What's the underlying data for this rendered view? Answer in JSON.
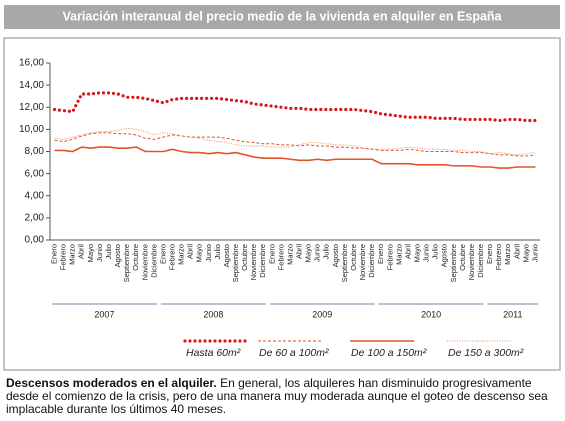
{
  "chart_data": {
    "type": "line",
    "title": "Variación interanual del precio medio de la vivienda en alquiler en España",
    "categories": [
      "Enero",
      "Febrero",
      "Marzo",
      "Abril",
      "Mayo",
      "Junio",
      "Julio",
      "Agosto",
      "Septiembre",
      "Octubre",
      "Noviembre",
      "Diciembre",
      "Enero",
      "Febrero",
      "Marzo",
      "Abril",
      "Mayo",
      "Junio",
      "Julio",
      "Agosto",
      "Septiembre",
      "Octubre",
      "Noviembre",
      "Diciembre",
      "Enero",
      "Febrero",
      "Marzo",
      "Abril",
      "Mayo",
      "Junio",
      "Julio",
      "Agosto",
      "Septiembre",
      "Octubre",
      "Noviembre",
      "Diciembre",
      "Enero",
      "Febrero",
      "Marzo",
      "Abril",
      "Mayo",
      "Junio",
      "Julio",
      "Agosto",
      "Septiembre",
      "Octubre",
      "Noviembre",
      "Diciembre",
      "Enero",
      "Febrero",
      "Marzo",
      "Abril",
      "Mayo",
      "Junio"
    ],
    "groups": [
      "2007",
      "2008",
      "2009",
      "2010",
      "2011"
    ],
    "ylim": [
      0,
      16
    ],
    "yticks": [
      {
        "value": 0,
        "label": "0,00"
      },
      {
        "value": 2,
        "label": "2,00"
      },
      {
        "value": 4,
        "label": "4,00"
      },
      {
        "value": 6,
        "label": "6,00"
      },
      {
        "value": 8,
        "label": "8,00"
      },
      {
        "value": 10,
        "label": "10,00"
      },
      {
        "value": 12,
        "label": "12,00"
      },
      {
        "value": 14,
        "label": "14,00"
      },
      {
        "value": 16,
        "label": "16,00"
      }
    ],
    "series": [
      {
        "name": "Hasta 60m²",
        "color": "#d7191c",
        "line_style": "dotted-thick",
        "values": [
          11.8,
          11.7,
          11.6,
          13.2,
          13.2,
          13.3,
          13.3,
          13.2,
          12.9,
          12.9,
          12.8,
          12.6,
          12.4,
          12.7,
          12.8,
          12.8,
          12.8,
          12.8,
          12.8,
          12.7,
          12.6,
          12.5,
          12.3,
          12.2,
          12.1,
          12.0,
          11.9,
          11.9,
          11.8,
          11.8,
          11.8,
          11.8,
          11.8,
          11.8,
          11.7,
          11.6,
          11.4,
          11.3,
          11.2,
          11.1,
          11.1,
          11.1,
          11.0,
          11.0,
          11.0,
          10.9,
          10.9,
          10.9,
          10.9,
          10.8,
          10.9,
          10.9,
          10.8,
          10.8
        ]
      },
      {
        "name": "De 60 a 100m²",
        "color": "#e0522a",
        "line_style": "dashed",
        "values": [
          9.0,
          8.9,
          9.1,
          9.4,
          9.6,
          9.7,
          9.7,
          9.6,
          9.6,
          9.5,
          9.2,
          9.1,
          9.3,
          9.5,
          9.4,
          9.3,
          9.3,
          9.3,
          9.3,
          9.2,
          9.0,
          8.9,
          8.8,
          8.7,
          8.7,
          8.6,
          8.6,
          8.5,
          8.6,
          8.5,
          8.5,
          8.4,
          8.4,
          8.3,
          8.3,
          8.2,
          8.1,
          8.1,
          8.1,
          8.2,
          8.1,
          8.0,
          8.0,
          8.0,
          8.0,
          7.9,
          7.9,
          7.9,
          7.8,
          7.7,
          7.7,
          7.6,
          7.6,
          7.7
        ]
      },
      {
        "name": "De 100 a 150m²",
        "color": "#e4542a",
        "line_style": "solid",
        "values": [
          8.1,
          8.1,
          8.0,
          8.4,
          8.3,
          8.4,
          8.4,
          8.3,
          8.3,
          8.4,
          8.0,
          8.0,
          8.0,
          8.2,
          8.0,
          7.9,
          7.9,
          7.8,
          7.9,
          7.8,
          7.9,
          7.7,
          7.5,
          7.4,
          7.4,
          7.4,
          7.3,
          7.2,
          7.2,
          7.3,
          7.2,
          7.3,
          7.3,
          7.3,
          7.3,
          7.3,
          6.9,
          6.9,
          6.9,
          6.9,
          6.8,
          6.8,
          6.8,
          6.8,
          6.7,
          6.7,
          6.7,
          6.6,
          6.6,
          6.5,
          6.5,
          6.6,
          6.6,
          6.6
        ]
      },
      {
        "name": "De 150 a 300m²",
        "color": "#ec8a5a",
        "line_style": "dotted-thin",
        "values": [
          9.2,
          9.1,
          9.3,
          9.5,
          9.7,
          9.8,
          9.8,
          9.9,
          10.1,
          10.0,
          9.8,
          9.5,
          9.7,
          9.6,
          9.4,
          9.3,
          9.2,
          9.0,
          8.9,
          8.8,
          8.6,
          8.5,
          8.5,
          8.5,
          8.4,
          8.4,
          8.4,
          8.6,
          8.8,
          8.8,
          8.7,
          8.6,
          8.6,
          8.5,
          8.3,
          8.2,
          8.2,
          8.2,
          8.3,
          8.4,
          8.3,
          8.2,
          8.2,
          8.2,
          8.1,
          8.1,
          8.0,
          8.0,
          7.8,
          7.9,
          7.8,
          7.7,
          7.8,
          7.9
        ]
      }
    ],
    "grid": false
  },
  "caption": {
    "lead": "Descensos moderados en el alquiler.",
    "text": " En general, los alquileres han disminuido progresivamente desde el comienzo de la crisis, pero de una manera muy moderada aunque el goteo de descenso sea implacable durante los últimos 40 meses."
  }
}
